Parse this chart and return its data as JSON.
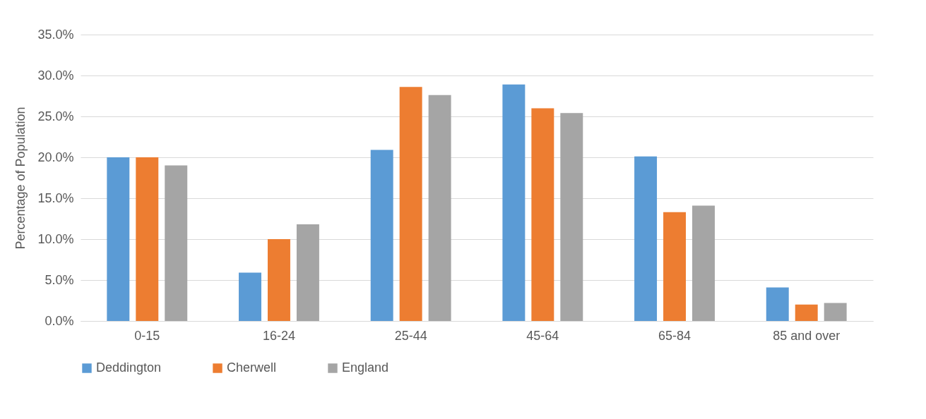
{
  "chart_data": {
    "type": "bar",
    "ylabel": "Percentage of Population",
    "categories": [
      "0-15",
      "16-24",
      "25-44",
      "45-64",
      "65-84",
      "85 and over"
    ],
    "series": [
      {
        "name": "Deddington",
        "color": "#5b9bd5",
        "values": [
          20.0,
          5.9,
          20.9,
          28.9,
          20.1,
          4.1
        ]
      },
      {
        "name": "Cherwell",
        "color": "#ed7d31",
        "values": [
          20.0,
          10.0,
          28.6,
          26.0,
          13.3,
          2.0
        ]
      },
      {
        "name": "England",
        "color": "#a5a5a5",
        "values": [
          19.0,
          11.8,
          27.6,
          25.4,
          14.1,
          2.2
        ]
      }
    ],
    "ylim": [
      0,
      35
    ],
    "yticks": [
      {
        "value": 0,
        "label": "0.0%"
      },
      {
        "value": 5,
        "label": "5.0%"
      },
      {
        "value": 10,
        "label": "10.0%"
      },
      {
        "value": 15,
        "label": "15.0%"
      },
      {
        "value": 20,
        "label": "20.0%"
      },
      {
        "value": 25,
        "label": "25.0%"
      },
      {
        "value": 30,
        "label": "30.0%"
      },
      {
        "value": 35,
        "label": "35.0%"
      }
    ],
    "grid": "y",
    "legend": "bottom"
  }
}
